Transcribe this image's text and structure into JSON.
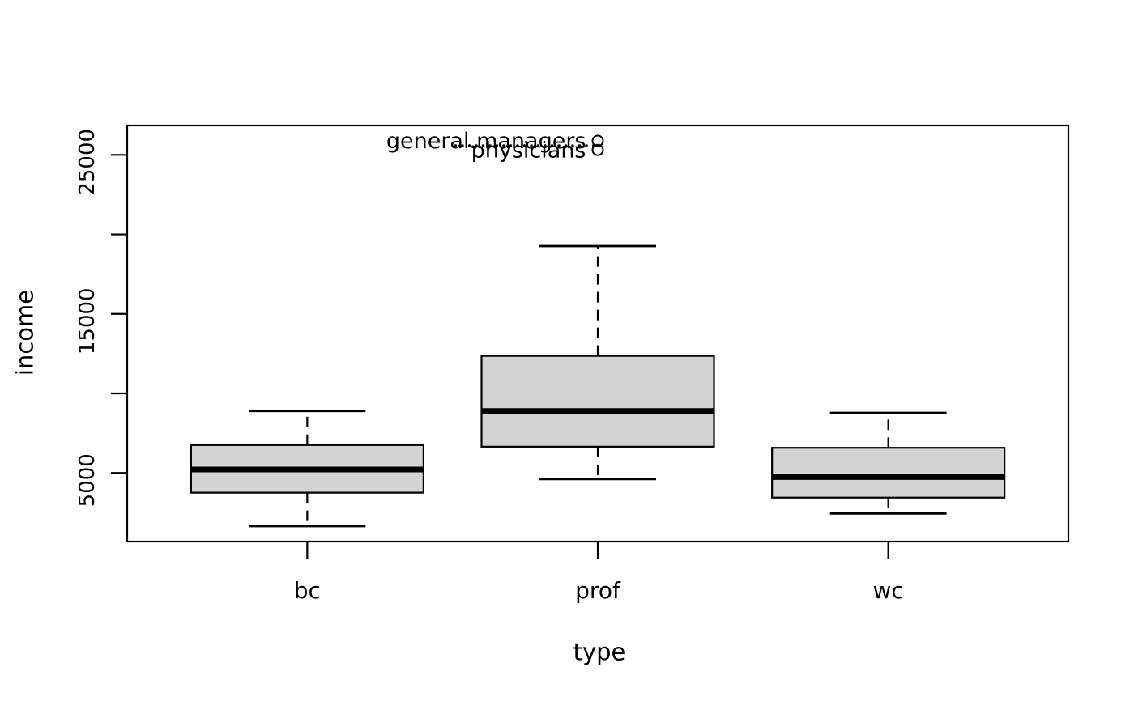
{
  "figure": {
    "background": "#ffffff",
    "text_color": "#000000"
  },
  "chart_data": {
    "type": "boxplot",
    "title": "",
    "xlabel": "type",
    "ylabel": "income",
    "categories": [
      "bc",
      "prof",
      "wc"
    ],
    "series": [
      {
        "category": "bc",
        "whisker_low": 1656,
        "q1": 3760,
        "median": 5216,
        "q3": 6754,
        "whisker_high": 8895,
        "outliers": []
      },
      {
        "category": "prof",
        "whisker_low": 4614,
        "q1": 6650,
        "median": 8891,
        "q3": 12360,
        "whisker_high": 19263,
        "outliers": [
          {
            "label": "physicians",
            "value": 25308
          },
          {
            "label": "general.managers",
            "value": 25879
          }
        ]
      },
      {
        "category": "wc",
        "whisker_low": 2448,
        "q1": 3449,
        "median": 4741,
        "q3": 6580,
        "whisker_high": 8780,
        "outliers": []
      }
    ],
    "yticks": {
      "values": [
        5000,
        10000,
        15000,
        20000,
        25000
      ],
      "labels": [
        "5000",
        "",
        "15000",
        "",
        "25000"
      ]
    },
    "ylim": [
      687,
      26848
    ],
    "grid": false,
    "legend": "none",
    "box_fill": "#d3d3d3",
    "stroke_color": "#000000",
    "annotations": [
      {
        "name": "dotted-trail",
        "y_value": 25590,
        "x0_cat": 1.51,
        "x1_cat": 1.99
      }
    ]
  }
}
